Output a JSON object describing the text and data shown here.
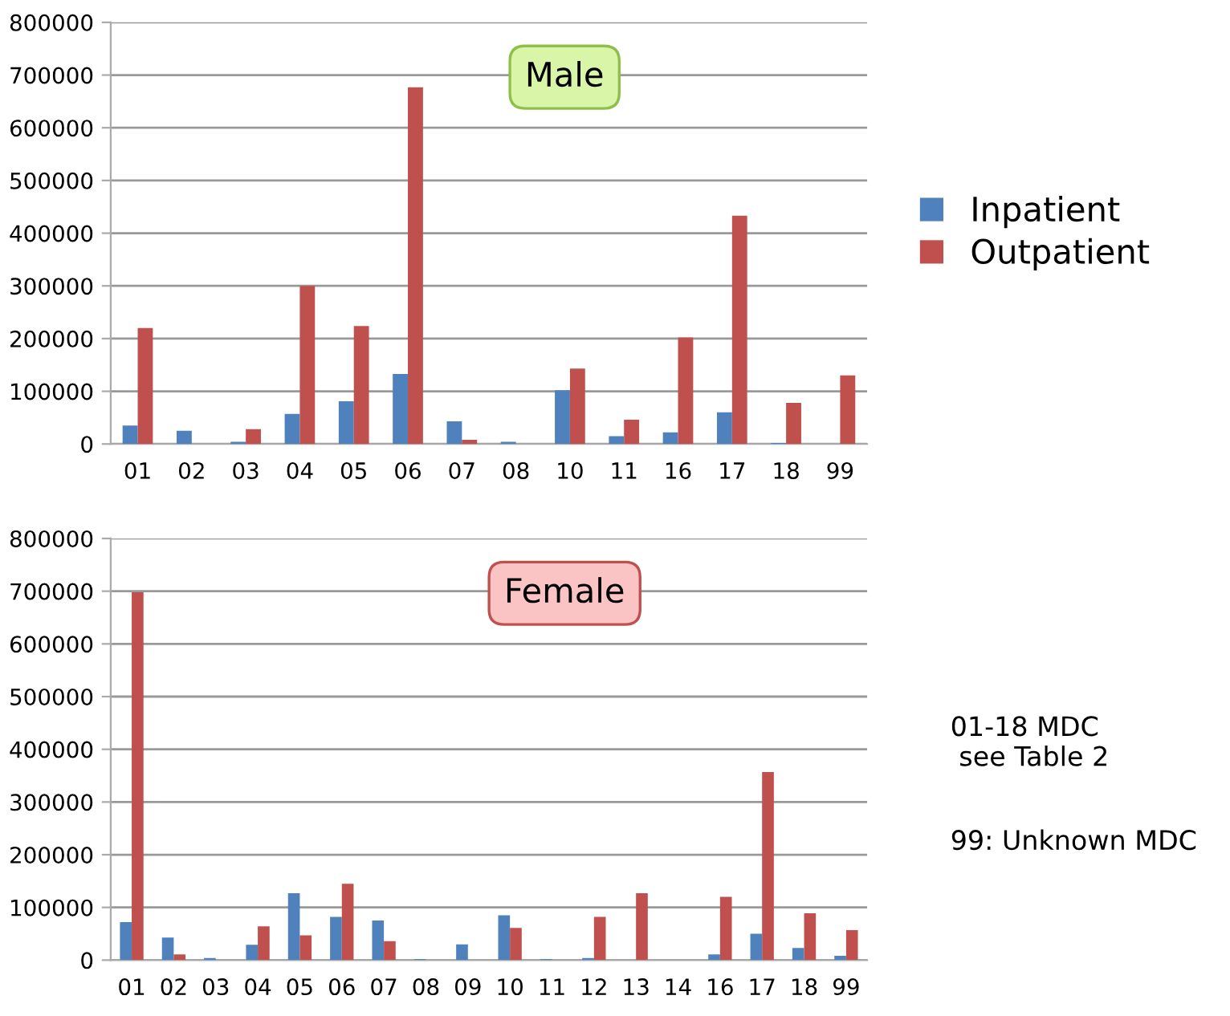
{
  "chart_data": [
    {
      "type": "bar",
      "title": "Male",
      "categories": [
        "01",
        "02",
        "03",
        "04",
        "05",
        "06",
        "07",
        "08",
        "10",
        "11",
        "16",
        "17",
        "18",
        "99"
      ],
      "series": [
        {
          "name": "Inpatient",
          "color": "#4f81bd",
          "values": [
            35000,
            25000,
            4000,
            57000,
            81000,
            133000,
            43000,
            4000,
            102000,
            15000,
            22000,
            60000,
            2000,
            0
          ]
        },
        {
          "name": "Outpatient",
          "color": "#c0504d",
          "values": [
            220000,
            0,
            28000,
            300000,
            224000,
            677000,
            8000,
            0,
            143000,
            46000,
            202000,
            433000,
            78000,
            130000
          ]
        }
      ],
      "ylim": [
        0,
        800000
      ],
      "yticks": [
        0,
        100000,
        200000,
        300000,
        400000,
        500000,
        600000,
        700000,
        800000
      ],
      "grid": "y",
      "legend": "right"
    },
    {
      "type": "bar",
      "title": "Female",
      "categories": [
        "01",
        "02",
        "03",
        "04",
        "05",
        "06",
        "07",
        "08",
        "09",
        "10",
        "11",
        "12",
        "13",
        "14",
        "16",
        "17",
        "18",
        "99"
      ],
      "series": [
        {
          "color": "#4f81bd",
          "values": [
            72000,
            43000,
            4000,
            29000,
            127000,
            82000,
            75000,
            2000,
            30000,
            85000,
            2000,
            4000,
            0,
            0,
            11000,
            50000,
            23000,
            8000
          ]
        },
        {
          "color": "#c0504d",
          "values": [
            698000,
            11000,
            0,
            64000,
            47000,
            145000,
            36000,
            0,
            0,
            61000,
            0,
            82000,
            127000,
            0,
            120000,
            357000,
            89000,
            57000
          ]
        }
      ],
      "ylim": [
        0,
        800000
      ],
      "yticks": [
        0,
        100000,
        200000,
        300000,
        400000,
        500000,
        600000,
        700000,
        800000
      ],
      "grid": "y",
      "annotations": [
        "01-18 MDC\n see Table 2",
        "99: Unknown MDC"
      ]
    }
  ]
}
